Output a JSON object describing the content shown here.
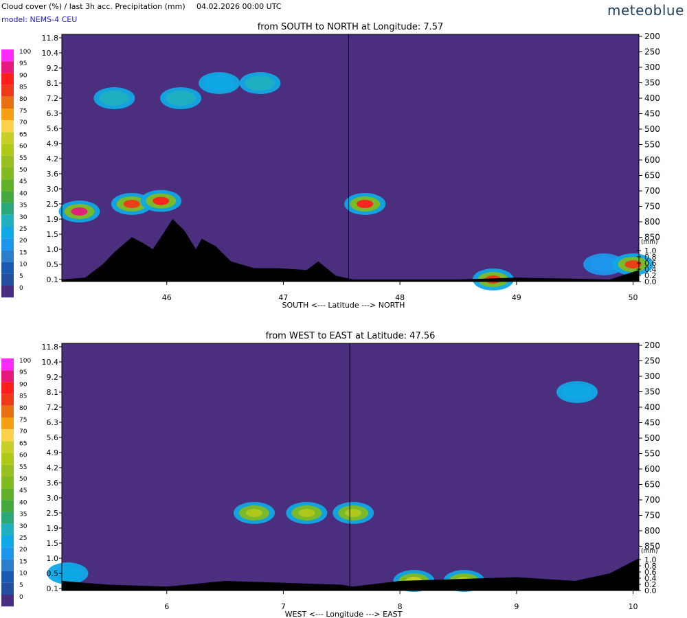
{
  "header": {
    "title": "Cloud cover (%) / last 3h acc. Precipitation (mm)",
    "datetime": "04.02.2026  00:00 UTC",
    "model": "model: NEMS-4 CEU",
    "brand": "meteoblue"
  },
  "legend": {
    "ticks": [
      "100",
      "95",
      "90",
      "85",
      "80",
      "75",
      "70",
      "65",
      "60",
      "55",
      "50",
      "45",
      "40",
      "35",
      "30",
      "25",
      "20",
      "15",
      "10",
      "5",
      "0"
    ],
    "colors": [
      "#ff2aff",
      "#e8187c",
      "#ff1e1e",
      "#ee3a18",
      "#e87010",
      "#f5a010",
      "#ffd24a",
      "#c8d028",
      "#b0c818",
      "#98c020",
      "#80bc20",
      "#60b028",
      "#44a840",
      "#2ca878",
      "#20b0c0",
      "#10a8e6",
      "#1c96ec",
      "#2a7ecc",
      "#1a5ab0",
      "#264e9e",
      "#4a2e7e"
    ]
  },
  "colors": {
    "background": "#4b2e7e",
    "terrain": "#000000"
  },
  "chart_data": [
    {
      "type": "heatmap",
      "title": "from SOUTH to NORTH at Longitude:   7.57",
      "xlabel": "SOUTH <---   Latitude   ---> NORTH",
      "x_ticks": [
        "46",
        "47",
        "48",
        "49",
        "50"
      ],
      "xlim": [
        45.1,
        50.05
      ],
      "left_ticks": [
        "11.8",
        "10.4",
        "9.2",
        "8.1",
        "7.2",
        "6.3",
        "5.6",
        "4.9",
        "4.2",
        "3.6",
        "3.0",
        "2.5",
        "1.9",
        "1.5",
        "1.0",
        "0.5",
        "0.1"
      ],
      "right_ticks": [
        "200",
        "250",
        "300",
        "350",
        "400",
        "450",
        "500",
        "550",
        "600",
        "650",
        "700",
        "750",
        "800",
        "850"
      ],
      "precip_label": "(mm)",
      "precip_ticks": [
        "1.0",
        "0.8",
        "0.6",
        "0.4",
        "0.2",
        "0.0"
      ],
      "marker_x": 47.56,
      "terrain": [
        [
          45.1,
          0.1
        ],
        [
          45.3,
          0.15
        ],
        [
          45.45,
          0.5
        ],
        [
          45.55,
          0.9
        ],
        [
          45.7,
          1.4
        ],
        [
          45.8,
          1.2
        ],
        [
          45.88,
          1.0
        ],
        [
          45.95,
          1.4
        ],
        [
          46.05,
          1.9
        ],
        [
          46.15,
          1.6
        ],
        [
          46.25,
          1.0
        ],
        [
          46.3,
          1.35
        ],
        [
          46.42,
          1.1
        ],
        [
          46.55,
          0.6
        ],
        [
          46.75,
          0.4
        ],
        [
          46.95,
          0.4
        ],
        [
          47.2,
          0.35
        ],
        [
          47.3,
          0.6
        ],
        [
          47.45,
          0.2
        ],
        [
          47.6,
          0.05
        ],
        [
          48.0,
          0.04
        ],
        [
          48.5,
          0.03
        ],
        [
          49.0,
          0.15
        ],
        [
          49.5,
          0.12
        ],
        [
          49.8,
          0.1
        ],
        [
          50.05,
          0.35
        ]
      ],
      "cloud_blobs": [
        {
          "x": 45.55,
          "level": 7.2,
          "value": 30
        },
        {
          "x": 46.12,
          "level": 7.2,
          "value": 30
        },
        {
          "x": 46.45,
          "level": 8.1,
          "value": 25
        },
        {
          "x": 46.8,
          "level": 8.1,
          "value": 30
        },
        {
          "x": 45.25,
          "level": 2.2,
          "value": 95
        },
        {
          "x": 45.7,
          "level": 2.5,
          "value": 85
        },
        {
          "x": 45.95,
          "level": 2.6,
          "value": 90
        },
        {
          "x": 47.7,
          "level": 2.5,
          "value": 90
        },
        {
          "x": 48.8,
          "level": 0.1,
          "value": 85
        },
        {
          "x": 49.75,
          "level": 0.5,
          "value": 20
        },
        {
          "x": 50.0,
          "level": 0.5,
          "value": 85
        }
      ]
    },
    {
      "type": "heatmap",
      "title": "from WEST to EAST at Latitude:  47.56",
      "xlabel": "WEST <---   Longitude   ---> EAST",
      "x_ticks": [
        "6",
        "7",
        "8",
        "9",
        "10"
      ],
      "xlim": [
        5.1,
        10.05
      ],
      "left_ticks": [
        "11.8",
        "10.4",
        "9.2",
        "8.1",
        "7.2",
        "6.3",
        "5.6",
        "4.9",
        "4.2",
        "3.6",
        "3.0",
        "2.5",
        "1.9",
        "1.5",
        "1.0",
        "0.5",
        "0.1"
      ],
      "right_ticks": [
        "200",
        "250",
        "300",
        "350",
        "400",
        "450",
        "500",
        "550",
        "600",
        "650",
        "700",
        "750",
        "800",
        "850"
      ],
      "precip_label": "(mm)",
      "precip_ticks": [
        "1.0",
        "0.8",
        "0.6",
        "0.4",
        "0.2",
        "0.0"
      ],
      "marker_x": 7.57,
      "terrain": [
        [
          5.1,
          0.3
        ],
        [
          5.5,
          0.2
        ],
        [
          6.0,
          0.15
        ],
        [
          6.5,
          0.3
        ],
        [
          7.0,
          0.25
        ],
        [
          7.5,
          0.2
        ],
        [
          7.6,
          0.15
        ],
        [
          8.0,
          0.3
        ],
        [
          8.5,
          0.35
        ],
        [
          9.0,
          0.4
        ],
        [
          9.5,
          0.3
        ],
        [
          9.8,
          0.5
        ],
        [
          10.05,
          1.0
        ]
      ],
      "cloud_blobs": [
        {
          "x": 6.75,
          "level": 2.5,
          "value": 60
        },
        {
          "x": 7.2,
          "level": 2.5,
          "value": 60
        },
        {
          "x": 7.6,
          "level": 2.5,
          "value": 60
        },
        {
          "x": 9.52,
          "level": 8.1,
          "value": 25
        },
        {
          "x": 5.15,
          "level": 0.5,
          "value": 25
        },
        {
          "x": 8.12,
          "level": 0.3,
          "value": 65
        },
        {
          "x": 8.55,
          "level": 0.3,
          "value": 60
        }
      ]
    }
  ]
}
